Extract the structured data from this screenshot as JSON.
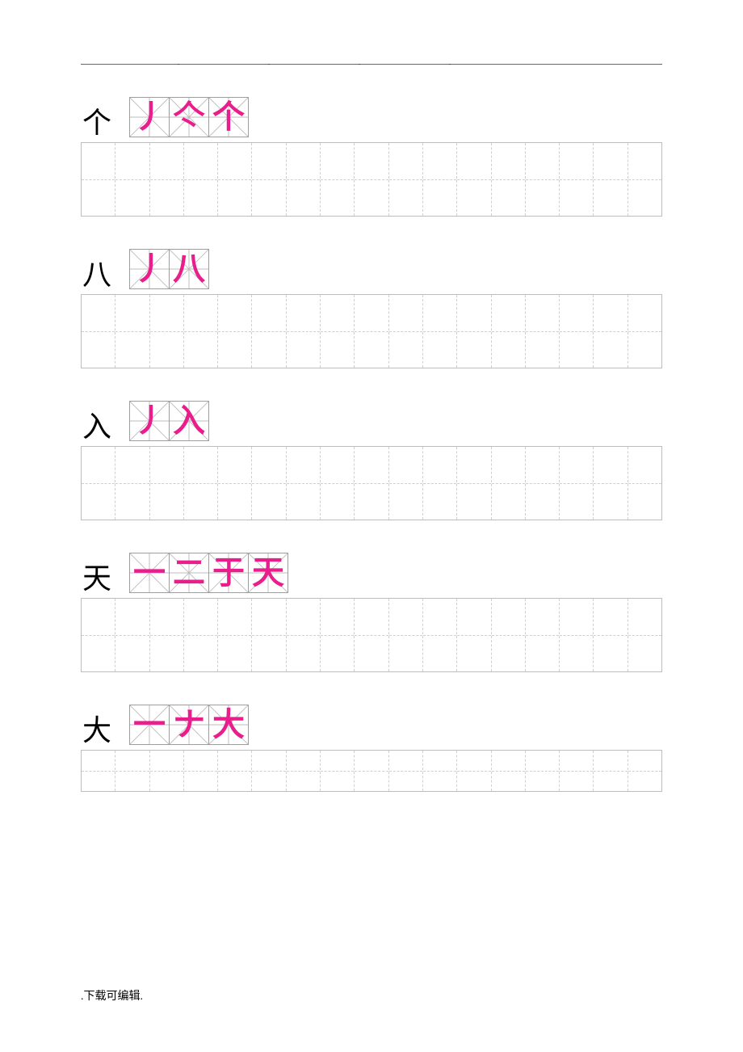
{
  "stroke_color": "#e91e8c",
  "guide_line_color": "#bdbdbd",
  "border_color": "#9e9e9e",
  "practice_cols": 17,
  "sections": [
    {
      "char": "个",
      "strokes": 3,
      "glyphs": [
        "丿",
        "亽",
        "个"
      ],
      "grid_height": "tall"
    },
    {
      "char": "八",
      "strokes": 2,
      "glyphs": [
        "丿",
        "八"
      ],
      "grid_height": "tall"
    },
    {
      "char": "入",
      "strokes": 2,
      "glyphs": [
        "丿",
        "入"
      ],
      "grid_height": "tall"
    },
    {
      "char": "天",
      "strokes": 4,
      "glyphs": [
        "一",
        "二",
        "于",
        "天"
      ],
      "grid_height": "tall"
    },
    {
      "char": "大",
      "strokes": 3,
      "glyphs": [
        "一",
        "ナ",
        "大"
      ],
      "grid_height": "short"
    }
  ],
  "footer_text": ".下载可编辑."
}
